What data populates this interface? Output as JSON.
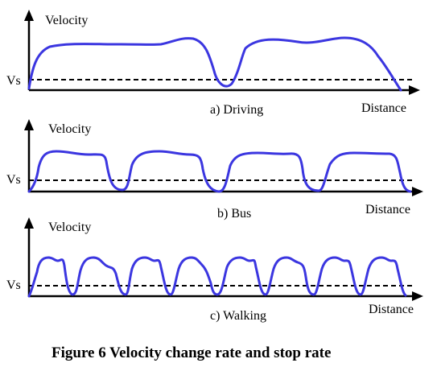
{
  "colors": {
    "curve": "#3b36e0",
    "axis": "#000000",
    "background": "#ffffff"
  },
  "panels": [
    {
      "id": "driving",
      "y_label": "Velocity",
      "vs_label": "Vs",
      "x_label": "Distance",
      "caption": "a) Driving"
    },
    {
      "id": "bus",
      "y_label": "Velocity",
      "vs_label": "Vs",
      "x_label": "Distance",
      "caption": "b) Bus"
    },
    {
      "id": "walking",
      "y_label": "Velocity",
      "vs_label": "Vs",
      "x_label": "Distance",
      "caption": "c) Walking"
    }
  ],
  "figure_caption": "Figure 6 Velocity change rate and stop rate"
}
